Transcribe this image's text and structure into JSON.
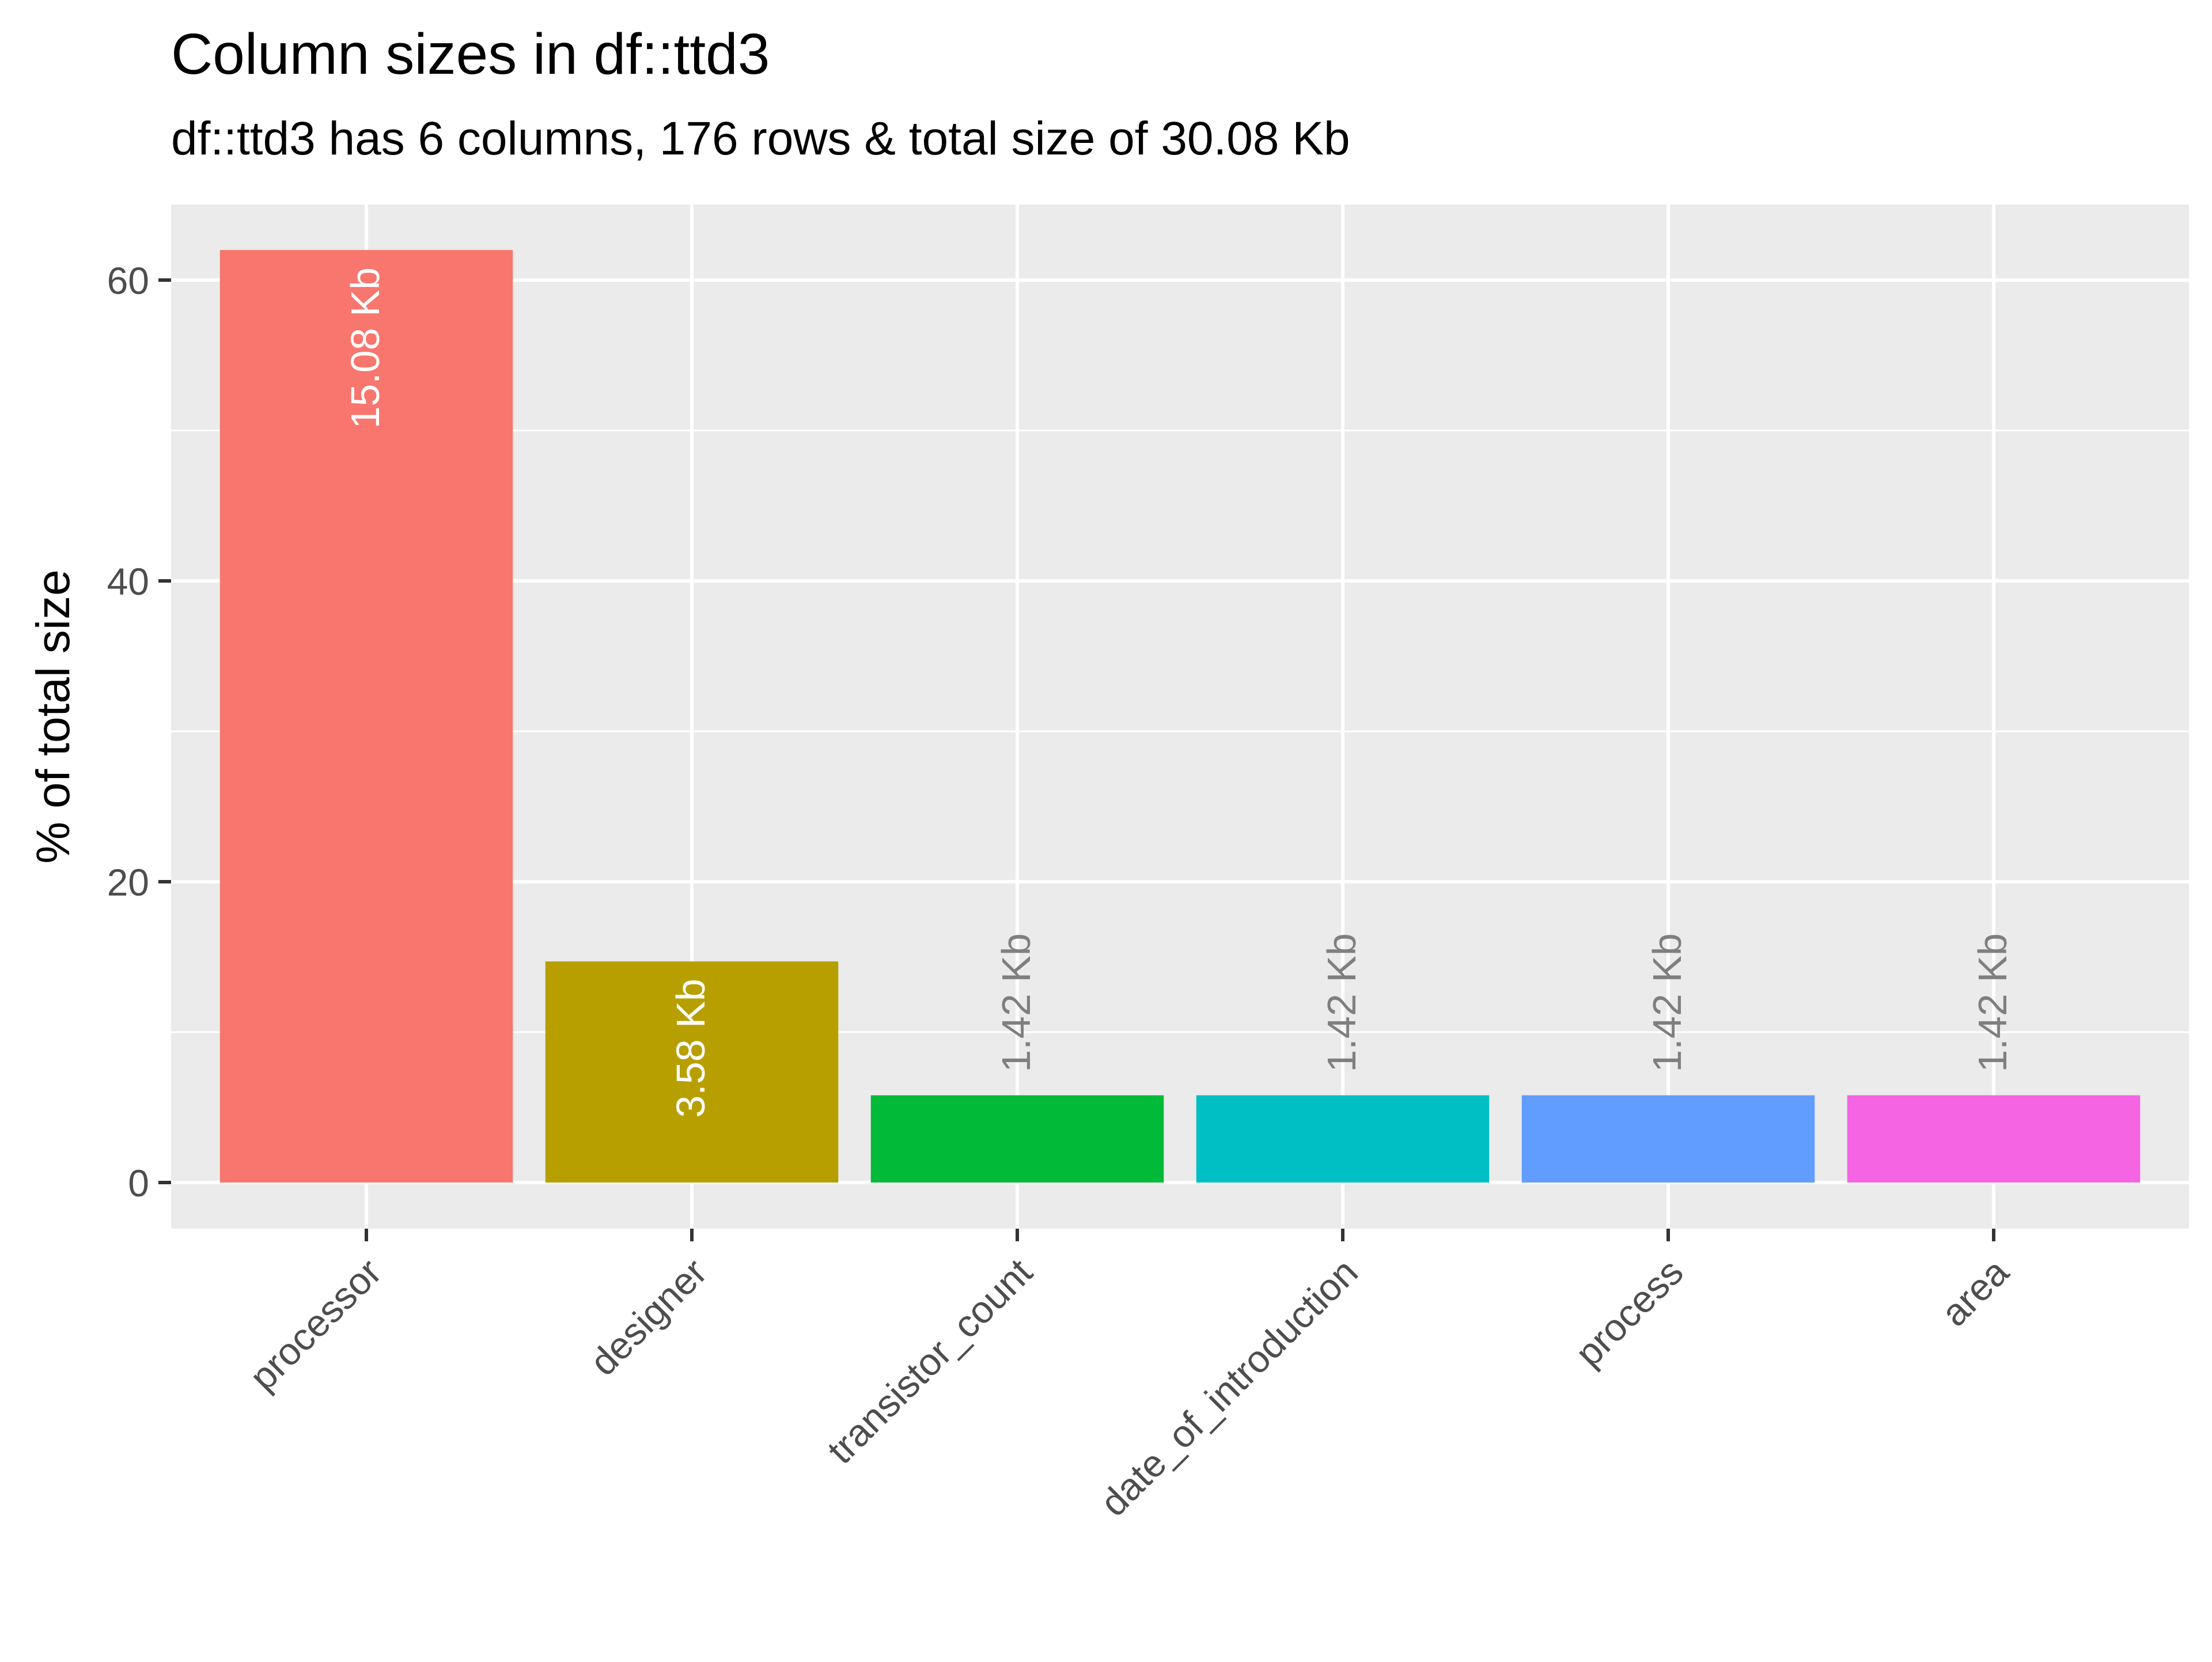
{
  "chart_data": {
    "type": "bar",
    "title": "Column sizes in df::ttd3",
    "subtitle": "df::ttd3 has 6 columns, 176 rows & total size of 30.08 Kb",
    "xlabel": "",
    "ylabel": "% of total size",
    "ylim": [
      0,
      65
    ],
    "yticks": [
      0,
      20,
      40,
      60
    ],
    "categories": [
      "processor",
      "designer",
      "transistor_count",
      "date_of_introduction",
      "process",
      "area"
    ],
    "values": [
      62.0,
      14.7,
      5.8,
      5.8,
      5.8,
      5.8
    ],
    "data_labels": [
      "15.08 Kb",
      "3.58 Kb",
      "1.42 Kb",
      "1.42 Kb",
      "1.42 Kb",
      "1.42 Kb"
    ],
    "colors": [
      "#F8766D",
      "#B79F00",
      "#00BA38",
      "#00BFC4",
      "#619CFF",
      "#F564E3"
    ],
    "panel_background": "#EBEBEB",
    "grid": true,
    "legend": "none"
  }
}
